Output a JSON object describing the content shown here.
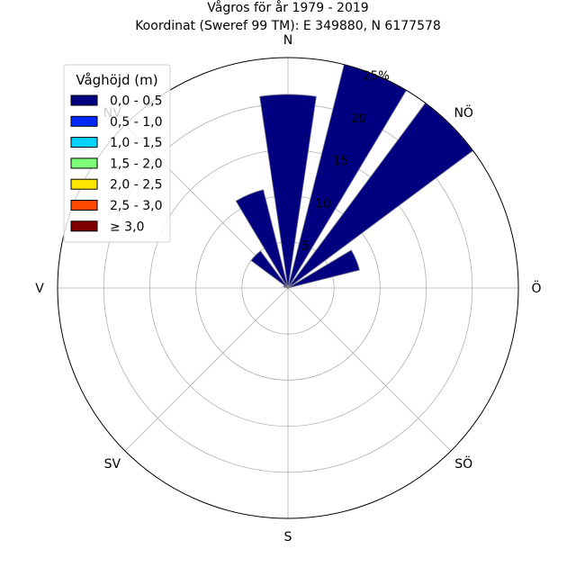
{
  "chart_data": {
    "type": "windrose",
    "title_line1": "Vågros för år 1979 - 2019",
    "title_line2": "Koordinat (Sweref 99 TM): E 349880, N 6177578",
    "directions": [
      "N",
      "NÖ",
      "Ö",
      "SÖ",
      "S",
      "SV",
      "V",
      "NV"
    ],
    "radial_ticks": [
      "5",
      "10",
      "15",
      "20",
      "25%"
    ],
    "radial_tick_values": [
      5,
      10,
      15,
      20,
      25
    ],
    "rmax": 25,
    "sectors_deg": [
      0,
      22.5,
      45,
      67.5,
      90,
      112.5,
      135,
      157.5,
      180,
      202.5,
      225,
      247.5,
      270,
      292.5,
      315,
      337.5
    ],
    "legend": {
      "title": "Våghöjd (m)",
      "items": [
        {
          "label": "0,0 - 0,5",
          "color": "#000080"
        },
        {
          "label": "0,5 - 1,0",
          "color": "#0028ff"
        },
        {
          "label": "1,0 - 1,5",
          "color": "#00d4ff"
        },
        {
          "label": "1,5 - 2,0",
          "color": "#7dff7a"
        },
        {
          "label": "2,0 - 2,5",
          "color": "#ffe600"
        },
        {
          "label": "2,5 - 3,0",
          "color": "#ff4800"
        },
        {
          "label": "≥ 3,0",
          "color": "#800000"
        }
      ]
    },
    "series": [
      {
        "name": "0,0 - 0,5",
        "values": [
          21,
          25,
          25,
          8,
          0,
          0,
          0,
          0,
          0,
          0,
          0,
          0,
          0,
          0.5,
          5,
          11
        ]
      }
    ],
    "grid": true,
    "legend_position": "top-left"
  }
}
